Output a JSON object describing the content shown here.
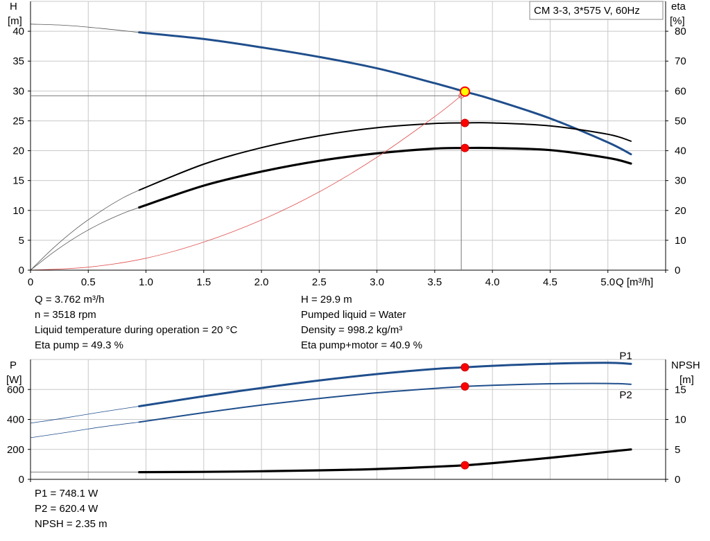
{
  "colors": {
    "blue": "#1f4e8c",
    "black": "#000000",
    "red": "#ff0000",
    "thin_red": "#e05050",
    "grid": "#c8c8c8",
    "marker_yellow": "#ffff00"
  },
  "chart_data": [
    {
      "type": "line",
      "title_box": "CM 3-3, 3*575 V, 60Hz",
      "x_axis": {
        "label": "Q [m³/h]",
        "lim": [
          0,
          5.5
        ],
        "ticks": [
          "0",
          "0.5",
          "1.0",
          "1.5",
          "2.0",
          "2.5",
          "3.0",
          "3.5",
          "4.0",
          "4.5",
          "5.0"
        ]
      },
      "y_left": {
        "label_top": "H",
        "label_unit": "[m]",
        "lim": [
          0,
          45
        ],
        "ticks": [
          "0",
          "5",
          "10",
          "15",
          "20",
          "25",
          "30",
          "35",
          "40"
        ]
      },
      "y_right": {
        "label_top": "eta",
        "label_unit": "[%]",
        "lim": [
          0,
          90
        ],
        "ticks": [
          "0",
          "10",
          "20",
          "30",
          "40",
          "50",
          "60",
          "70",
          "80"
        ]
      },
      "grid": true,
      "series": [
        {
          "axis": "left",
          "style": "blue-thick",
          "x": [
            0.94,
            1.5,
            2.0,
            2.5,
            3.0,
            3.5,
            3.76,
            4.0,
            4.5,
            5.0,
            5.2
          ],
          "y": [
            39.8,
            38.7,
            37.3,
            35.7,
            33.8,
            31.3,
            29.9,
            28.6,
            25.4,
            21.4,
            19.4
          ]
        },
        {
          "axis": "left",
          "style": "thin-gray",
          "x": [
            0,
            0.3,
            0.6,
            0.94
          ],
          "y": [
            41.2,
            41.0,
            40.5,
            39.8
          ]
        },
        {
          "axis": "right",
          "style": "black-medium",
          "x": [
            0.94,
            1.5,
            2.0,
            2.5,
            3.0,
            3.5,
            3.76,
            4.0,
            4.5,
            5.0,
            5.2
          ],
          "y": [
            26.8,
            35.5,
            41.0,
            45.0,
            47.7,
            49.1,
            49.3,
            49.3,
            48.3,
            45.5,
            43.2
          ]
        },
        {
          "axis": "right",
          "style": "thin-gray",
          "x": [
            0,
            0.2,
            0.4,
            0.6,
            0.8,
            0.94
          ],
          "y": [
            0,
            7.5,
            14.0,
            19.5,
            24.2,
            26.8
          ]
        },
        {
          "axis": "right",
          "style": "black-thick",
          "x": [
            0.94,
            1.5,
            2.0,
            2.5,
            3.0,
            3.5,
            3.76,
            4.0,
            4.5,
            5.0,
            5.2
          ],
          "y": [
            21.0,
            28.3,
            33.0,
            36.6,
            39.1,
            40.7,
            40.9,
            40.9,
            40.2,
            37.6,
            35.7
          ]
        },
        {
          "axis": "right",
          "style": "thin-gray",
          "x": [
            0,
            0.2,
            0.4,
            0.6,
            0.8,
            0.94
          ],
          "y": [
            0,
            6.0,
            11.2,
            15.5,
            19.0,
            21.0
          ]
        },
        {
          "axis": "left",
          "style": "thin-red",
          "x": [
            0,
            0.5,
            1.0,
            1.5,
            2.0,
            2.5,
            3.0,
            3.5,
            3.73
          ],
          "y": [
            0,
            0.5,
            2.0,
            4.7,
            8.4,
            13.1,
            18.9,
            25.7,
            29.2
          ]
        }
      ],
      "duty_point": {
        "Q": 3.762,
        "H": 29.9
      },
      "eta_points": [
        {
          "Q": 3.762,
          "eta": 49.3
        },
        {
          "Q": 3.762,
          "eta": 40.9
        }
      ],
      "system_point": {
        "Q": 3.73,
        "H": 29.2
      }
    },
    {
      "type": "line",
      "x_lim": [
        0,
        5.5
      ],
      "y_left": {
        "label_top": "P",
        "label_unit": "[W]",
        "lim": [
          0,
          800
        ],
        "ticks": [
          "0",
          "200",
          "400",
          "600"
        ]
      },
      "y_right": {
        "label_top": "NPSH",
        "label_unit": "[m]",
        "lim": [
          0,
          20
        ],
        "ticks": [
          "0",
          "5",
          "10",
          "15"
        ]
      },
      "grid": true,
      "series": [
        {
          "name": "P1",
          "axis": "left",
          "style": "blue-thick",
          "x": [
            0.94,
            1.5,
            2.0,
            2.5,
            3.0,
            3.5,
            3.76,
            4.0,
            4.5,
            5.0,
            5.2
          ],
          "y": [
            488,
            555,
            610,
            660,
            703,
            737,
            748,
            758,
            772,
            778,
            771
          ]
        },
        {
          "axis": "left",
          "style": "thin-blue",
          "x": [
            0,
            0.3,
            0.6,
            0.94
          ],
          "y": [
            375,
            410,
            448,
            488
          ]
        },
        {
          "name": "P2",
          "axis": "left",
          "style": "blue-medium",
          "x": [
            0.94,
            1.5,
            2.0,
            2.5,
            3.0,
            3.5,
            3.76,
            4.0,
            4.5,
            5.0,
            5.2
          ],
          "y": [
            382,
            445,
            496,
            540,
            578,
            607,
            620,
            628,
            638,
            640,
            635
          ]
        },
        {
          "axis": "left",
          "style": "thin-blue",
          "x": [
            0,
            0.3,
            0.6,
            0.94
          ],
          "y": [
            278,
            312,
            348,
            382
          ]
        },
        {
          "axis": "right",
          "style": "black-thick",
          "x": [
            0.94,
            1.5,
            2.0,
            2.5,
            3.0,
            3.5,
            3.76,
            4.0,
            4.5,
            5.0,
            5.2
          ],
          "y": [
            1.2,
            1.25,
            1.35,
            1.5,
            1.72,
            2.1,
            2.35,
            2.7,
            3.6,
            4.6,
            5.0
          ]
        },
        {
          "axis": "right",
          "style": "thin-gray",
          "x": [
            0,
            0.94
          ],
          "y": [
            1.2,
            1.2
          ]
        }
      ],
      "points": [
        {
          "axis": "left",
          "Q": 3.762,
          "v": 748.1
        },
        {
          "axis": "left",
          "Q": 3.762,
          "v": 620.4
        },
        {
          "axis": "right",
          "Q": 3.762,
          "v": 2.35
        }
      ],
      "labels": [
        {
          "text": "P1",
          "Q": 5.1,
          "v": 802
        },
        {
          "text": "P2",
          "Q": 5.1,
          "v": 540
        }
      ]
    }
  ],
  "info_top_left": [
    "Q = 3.762 m³/h",
    "n = 3518 rpm",
    "Liquid temperature during operation = 20 °C",
    "Eta pump = 49.3 %"
  ],
  "info_top_right": [
    "H = 29.9 m",
    "Pumped liquid = Water",
    "Density = 998.2 kg/m³",
    "Eta pump+motor = 40.9 %"
  ],
  "info_bottom": [
    "P1 = 748.1 W",
    "P2 = 620.4 W",
    "NPSH = 2.35 m"
  ]
}
